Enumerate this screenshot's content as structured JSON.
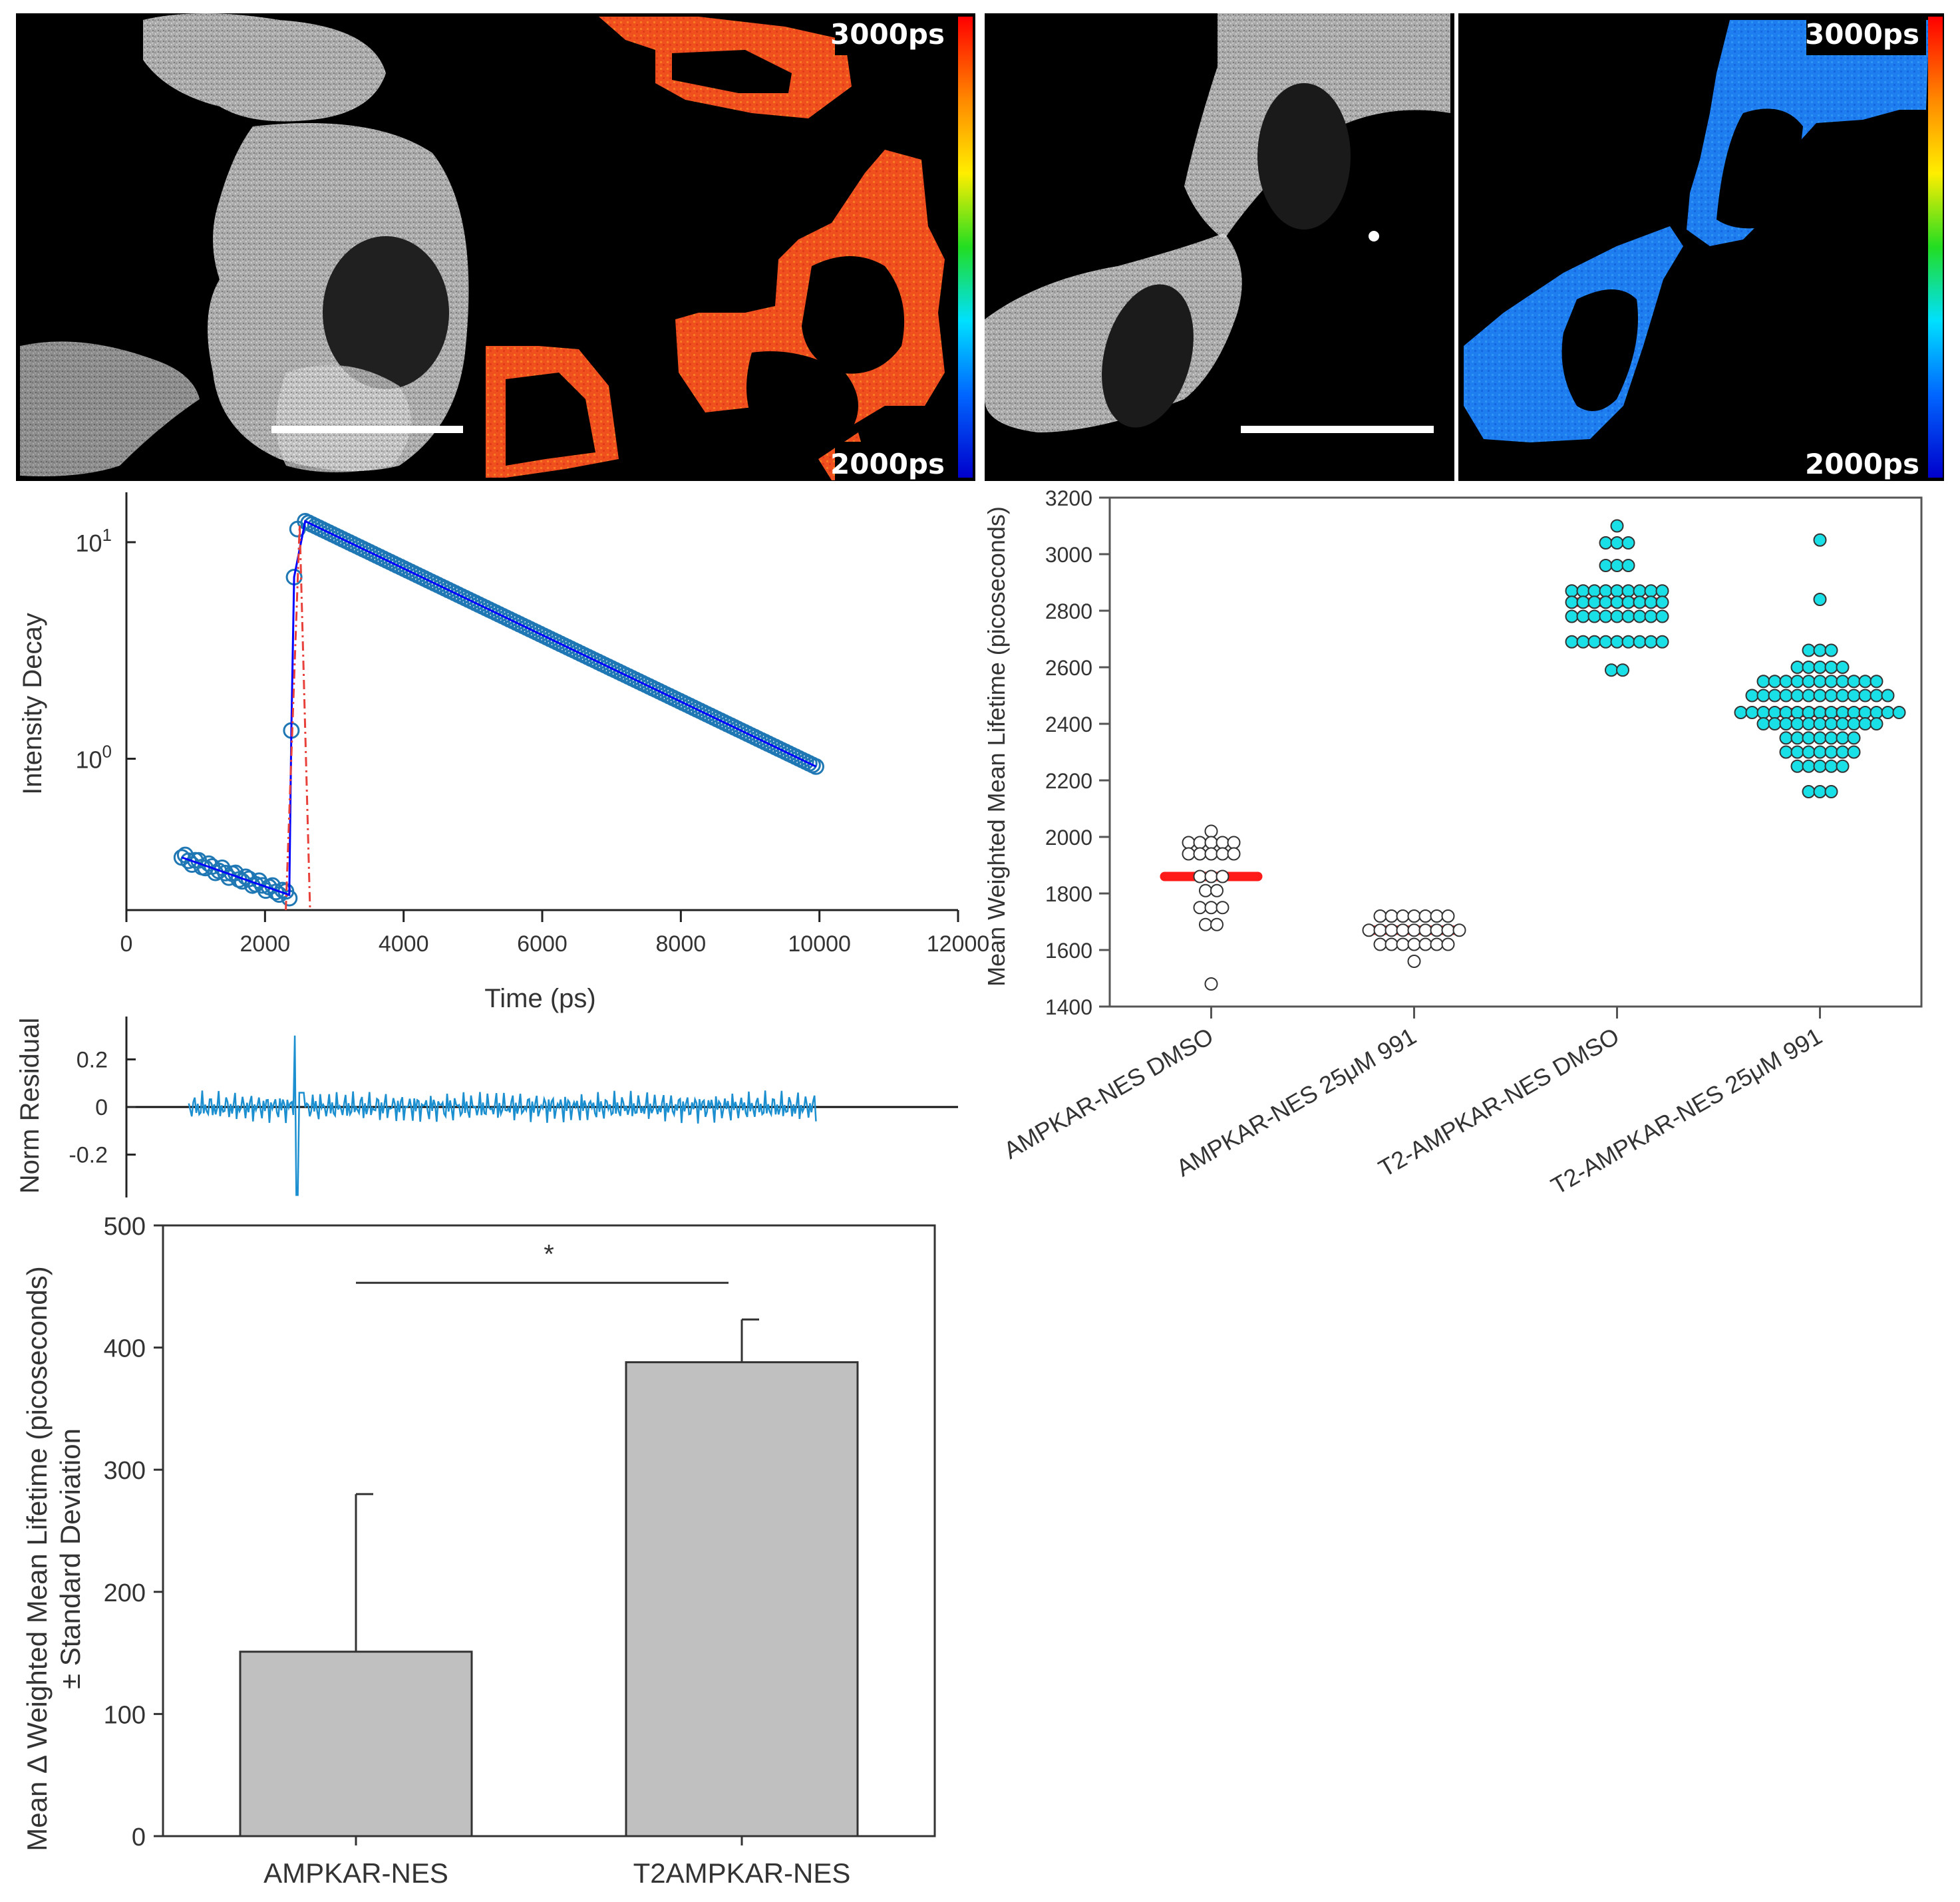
{
  "colors": {
    "decay_marker": "#1f77b4",
    "fit_line": "#0000ff",
    "irf_line": "#e8403a",
    "residual_line": "#1b8fcf",
    "median_bar": "#ff1a1a",
    "dot_fill_ampkar": "#ffffff",
    "dot_fill_t2": "#19e0e6",
    "bar_fill": "#c0c0c0"
  },
  "images": {
    "panel1_scale_top": "3000ps",
    "panel1_scale_bottom": "2000ps",
    "panel2_scale_top": "3000ps",
    "panel2_scale_bottom": "2000ps"
  },
  "chart_data": [
    {
      "id": "decay",
      "type": "scatter",
      "xlabel": "Time (ps)",
      "ylabel": "Intensity Decay",
      "yscale": "log",
      "xlim": [
        0,
        12000
      ],
      "xticks": [
        "0",
        "2000",
        "4000",
        "6000",
        "8000",
        "10000",
        "12000"
      ],
      "xtick_values": [
        0,
        2000,
        4000,
        6000,
        8000,
        10000,
        12000
      ],
      "ylim": [
        0.2,
        17
      ],
      "yticks": [
        {
          "value": 10,
          "base": "10",
          "exp": "1"
        },
        {
          "value": 1,
          "base": "10",
          "exp": "0"
        }
      ],
      "pre_pulse": {
        "x_start": 800,
        "x_end": 2350,
        "y_start": 0.35,
        "y_end": 0.235
      },
      "rise_points": [
        [
          2380,
          1.35
        ],
        [
          2420,
          6.9
        ],
        [
          2470,
          11.5
        ]
      ],
      "peak": {
        "x": 2580,
        "y": 12.5
      },
      "decay_end": {
        "x": 9950,
        "y": 0.92
      },
      "irf": {
        "x_start": 2300,
        "x_peak": 2500,
        "x_end": 2650,
        "peak_y": 12
      }
    },
    {
      "id": "residual",
      "type": "line",
      "ylabel": "Norm Residual",
      "ylim": [
        -0.38,
        0.38
      ],
      "yticks": [
        "0.2",
        "0",
        "-0.2"
      ],
      "ytick_values": [
        0.2,
        0,
        -0.2
      ],
      "xlim": [
        0,
        12000
      ],
      "x_start": 900,
      "x_end": 9950,
      "spike": {
        "x": 2430,
        "up": 0.3,
        "down": -0.37
      }
    },
    {
      "id": "dotplot",
      "type": "scatter",
      "ylabel": "Mean Weighted Mean Lifetime (picoseconds)",
      "ylim": [
        1400,
        3200
      ],
      "yticks": [
        "1400",
        "1600",
        "1800",
        "2000",
        "2200",
        "2400",
        "2600",
        "2800",
        "3000",
        "3200"
      ],
      "ytick_values": [
        1400,
        1600,
        1800,
        2000,
        2200,
        2400,
        2600,
        2800,
        3000,
        3200
      ],
      "categories": [
        "AMPKAR-NES DMSO",
        "AMPKAR-NES 25μM 991",
        "T2-AMPKAR-NES DMSO",
        "T2-AMPKAR-NES 25μM 991"
      ],
      "groups": [
        {
          "name": "AMPKAR-NES DMSO",
          "median": 1860,
          "fill": "white",
          "rows": [
            [
              2020,
              1
            ],
            [
              1980,
              5
            ],
            [
              1940,
              5
            ],
            [
              1860,
              3
            ],
            [
              1810,
              2
            ],
            [
              1750,
              3
            ],
            [
              1690,
              2
            ],
            [
              1480,
              1
            ]
          ]
        },
        {
          "name": "AMPKAR-NES 25μM 991",
          "median": 1670,
          "fill": "white",
          "rows": [
            [
              1720,
              7
            ],
            [
              1670,
              9
            ],
            [
              1620,
              7
            ],
            [
              1560,
              1
            ]
          ]
        },
        {
          "name": "T2-AMPKAR-NES DMSO",
          "median": 2830,
          "fill": "cyan",
          "rows": [
            [
              3100,
              1
            ],
            [
              3040,
              3
            ],
            [
              2960,
              3
            ],
            [
              2870,
              9
            ],
            [
              2830,
              9
            ],
            [
              2780,
              9
            ],
            [
              2690,
              9
            ],
            [
              2590,
              2
            ]
          ]
        },
        {
          "name": "T2-AMPKAR-NES 25μM 991",
          "median": 2440,
          "fill": "cyan",
          "rows": [
            [
              3050,
              1
            ],
            [
              2840,
              1
            ],
            [
              2660,
              3
            ],
            [
              2600,
              5
            ],
            [
              2550,
              11
            ],
            [
              2500,
              13
            ],
            [
              2440,
              15
            ],
            [
              2400,
              11
            ],
            [
              2350,
              7
            ],
            [
              2300,
              7
            ],
            [
              2250,
              5
            ],
            [
              2160,
              3
            ]
          ]
        }
      ]
    },
    {
      "id": "barplot",
      "type": "bar",
      "ylabel_line1": "Mean Δ Weighted Mean Lifetime (picoseconds)",
      "ylabel_line2": "± Standard Deviation",
      "ylim": [
        0,
        500
      ],
      "yticks": [
        "0",
        "100",
        "200",
        "300",
        "400",
        "500"
      ],
      "ytick_values": [
        0,
        100,
        200,
        300,
        400,
        500
      ],
      "categories": [
        "AMPKAR-NES",
        "T2AMPKAR-NES"
      ],
      "values": [
        151,
        388
      ],
      "errors": [
        129,
        35
      ],
      "significance": "*"
    }
  ]
}
